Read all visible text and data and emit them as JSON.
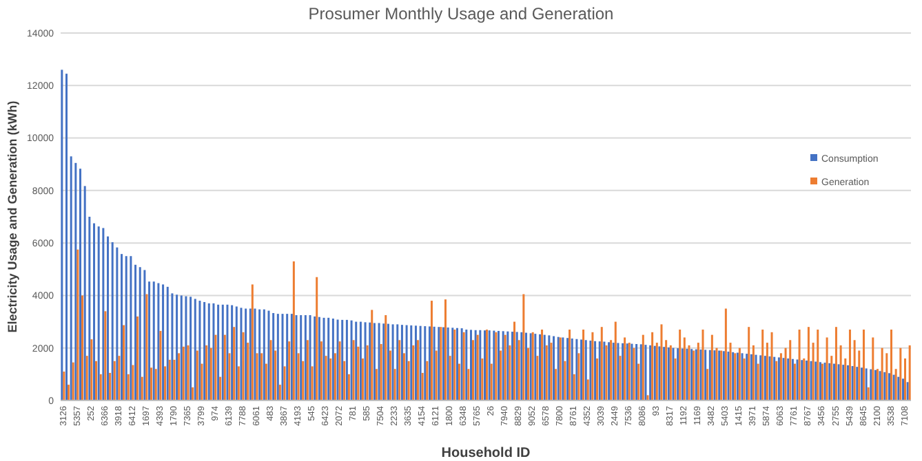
{
  "chart_data": {
    "type": "bar",
    "title": "Prosumer Monthly Usage and Generation",
    "xlabel": "Household ID",
    "ylabel": "Electricity Usage and Generation (kWh)",
    "categories": [
      "3126",
      null,
      null,
      "5357",
      null,
      null,
      "252",
      null,
      null,
      "6366",
      null,
      null,
      "3918",
      null,
      null,
      "6412",
      null,
      null,
      "1697",
      null,
      null,
      "4393",
      null,
      null,
      "1790",
      null,
      null,
      "7365",
      null,
      null,
      "3799",
      null,
      null,
      "974",
      null,
      null,
      "6139",
      null,
      null,
      "7788",
      null,
      null,
      "6061",
      null,
      null,
      "483",
      null,
      null,
      "3867",
      null,
      null,
      "4193",
      null,
      null,
      "545",
      null,
      null,
      "6423",
      null,
      null,
      "2072",
      null,
      null,
      "781",
      null,
      null,
      "585",
      null,
      null,
      "7504",
      null,
      null,
      "2233",
      null,
      null,
      "3635",
      null,
      null,
      "4154",
      null,
      null,
      "6121",
      null,
      null,
      "1800",
      null,
      null,
      "6348",
      null,
      null,
      "5765",
      null,
      null,
      "26",
      null,
      null,
      "7940",
      null,
      null,
      "8829",
      null,
      null,
      "9052",
      null,
      null,
      "6578",
      null,
      null,
      "7800",
      null,
      null,
      "8761",
      null,
      null,
      "4352",
      null,
      null,
      "3039",
      null,
      null,
      "2449",
      null,
      null,
      "7536",
      null,
      null,
      "8086",
      null,
      null,
      "93",
      null,
      null,
      "8317",
      null,
      null,
      "1192",
      null,
      null,
      "1169",
      null,
      null,
      "3482",
      null,
      null,
      "5403",
      null,
      null,
      "1415",
      null,
      null,
      "3971",
      null,
      null,
      "5874",
      null,
      null,
      "6063",
      null,
      null,
      "7761",
      null,
      null,
      "8767",
      null,
      null,
      "3456",
      null,
      null,
      "2755",
      null,
      null,
      "5439",
      null,
      null,
      "8645",
      null,
      null,
      "2100",
      null,
      null,
      "3538",
      null,
      null,
      "7108",
      null
    ],
    "series": [
      {
        "name": "Consumption",
        "color": "#4472c4",
        "values": [
          12600,
          12450,
          9300,
          9050,
          8830,
          8170,
          7000,
          6750,
          6630,
          6570,
          6250,
          6030,
          5830,
          5580,
          5500,
          5500,
          5170,
          5080,
          4970,
          4530,
          4530,
          4470,
          4420,
          4330,
          4080,
          4030,
          4000,
          3970,
          3950,
          3870,
          3800,
          3750,
          3700,
          3700,
          3650,
          3650,
          3650,
          3630,
          3580,
          3530,
          3500,
          3500,
          3500,
          3470,
          3470,
          3420,
          3330,
          3300,
          3300,
          3300,
          3300,
          3250,
          3250,
          3250,
          3250,
          3200,
          3180,
          3150,
          3150,
          3120,
          3080,
          3070,
          3070,
          3050,
          3000,
          3000,
          2980,
          2970,
          2950,
          2950,
          2930,
          2920,
          2900,
          2900,
          2880,
          2870,
          2860,
          2850,
          2840,
          2830,
          2820,
          2810,
          2800,
          2790,
          2780,
          2770,
          2760,
          2750,
          2700,
          2690,
          2680,
          2680,
          2670,
          2670,
          2660,
          2650,
          2640,
          2630,
          2620,
          2610,
          2600,
          2580,
          2560,
          2540,
          2520,
          2500,
          2480,
          2450,
          2420,
          2400,
          2380,
          2360,
          2340,
          2320,
          2300,
          2280,
          2260,
          2250,
          2240,
          2220,
          2200,
          2190,
          2180,
          2170,
          2160,
          2150,
          2140,
          2120,
          2100,
          2080,
          2060,
          2040,
          2020,
          2000,
          1990,
          1980,
          1970,
          1960,
          1950,
          1940,
          1930,
          1920,
          1910,
          1900,
          1880,
          1860,
          1840,
          1820,
          1800,
          1780,
          1760,
          1740,
          1720,
          1700,
          1680,
          1660,
          1640,
          1620,
          1600,
          1580,
          1560,
          1540,
          1520,
          1500,
          1480,
          1460,
          1440,
          1420,
          1400,
          1380,
          1360,
          1340,
          1310,
          1280,
          1250,
          1220,
          1190,
          1160,
          1120,
          1080,
          1040,
          980,
          900,
          830,
          700
        ]
      },
      {
        "name": "Generation",
        "color": "#ed7d31",
        "values": [
          1100,
          600,
          1450,
          5750,
          4000,
          1700,
          2330,
          1500,
          1000,
          3400,
          1050,
          1500,
          1700,
          2870,
          1000,
          1350,
          3200,
          900,
          4050,
          1250,
          1200,
          2650,
          1300,
          1550,
          1550,
          1800,
          2050,
          2100,
          500,
          1900,
          1400,
          2100,
          2000,
          2500,
          900,
          2500,
          1800,
          2800,
          1300,
          2600,
          2200,
          4420,
          1800,
          1800,
          1400,
          2300,
          1900,
          600,
          1300,
          2250,
          5300,
          1800,
          1500,
          2300,
          1300,
          4700,
          2250,
          1700,
          1600,
          1800,
          2250,
          1500,
          1000,
          2300,
          2050,
          1600,
          2100,
          3450,
          1200,
          2150,
          3250,
          1900,
          1200,
          2300,
          1800,
          1500,
          2100,
          2300,
          1050,
          1500,
          3800,
          1900,
          2800,
          3850,
          1700,
          2700,
          1400,
          2600,
          1200,
          2300,
          2500,
          1600,
          2700,
          1400,
          2600,
          1900,
          2500,
          2100,
          3000,
          2300,
          4050,
          2000,
          2600,
          1700,
          2700,
          2100,
          2200,
          1200,
          2400,
          1500,
          2700,
          1000,
          1800,
          2700,
          800,
          2600,
          1600,
          2800,
          2100,
          2300,
          3000,
          1700,
          2400,
          2200,
          2000,
          1400,
          2500,
          200,
          2600,
          2200,
          2900,
          2300,
          2100,
          1600,
          2700,
          2400,
          2100,
          1900,
          2200,
          2700,
          1200,
          2500,
          2000,
          1900,
          3500,
          2200,
          1800,
          2000,
          1600,
          2800,
          2100,
          1400,
          2700,
          2200,
          2600,
          1500,
          1800,
          2000,
          2300,
          1400,
          2700,
          1600,
          2800,
          2200,
          2700,
          1400,
          2400,
          1700,
          2800,
          2100,
          1600,
          2700,
          2300,
          1900,
          2700,
          500,
          2400,
          1200,
          2000,
          1800,
          2700,
          1200,
          2000,
          1600,
          2100
        ]
      }
    ],
    "ylim": [
      0,
      14000
    ],
    "yticks": [
      0,
      2000,
      4000,
      6000,
      8000,
      10000,
      12000,
      14000
    ],
    "grid": "y",
    "legend": "right"
  }
}
